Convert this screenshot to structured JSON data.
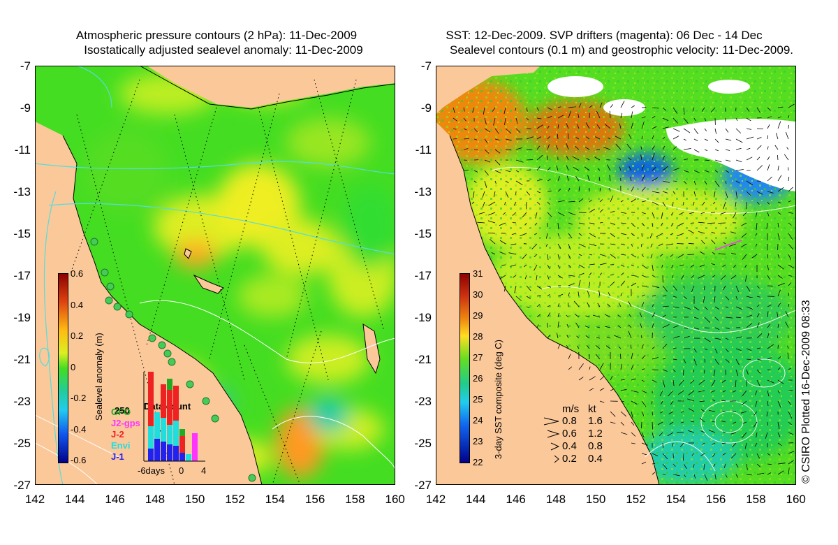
{
  "left_panel": {
    "title_line1": "Atmospheric pressure contours (2 hPa): 11-Dec-2009",
    "title_line2": "Isostatically adjusted sealevel anomaly: 11-Dec-2009",
    "y_ticks": [
      "-7",
      "-9",
      "-11",
      "-13",
      "-15",
      "-17",
      "-19",
      "-21",
      "-23",
      "-25",
      "-27"
    ],
    "x_ticks": [
      "142",
      "144",
      "146",
      "148",
      "150",
      "152",
      "154",
      "156",
      "158",
      "160"
    ],
    "colorbar": {
      "label": "Sealevel anomaly (m)",
      "ticks": [
        "0.6",
        "0.4",
        "0.2",
        "0",
        "-0.2",
        "-0.4",
        "-0.6"
      ]
    },
    "legend": {
      "title": "Data count",
      "count_label": "250",
      "missions": [
        {
          "name": "GFO",
          "color": "#22aa22"
        },
        {
          "name": "J2-gps",
          "color": "#ff33ff"
        },
        {
          "name": "J-2",
          "color": "#ee2222"
        },
        {
          "name": "Envi",
          "color": "#22dddd"
        },
        {
          "name": "J-1",
          "color": "#2222ee"
        }
      ],
      "x_labels": [
        "-6days",
        "0",
        "4"
      ]
    }
  },
  "right_panel": {
    "title_line1": "SST: 12-Dec-2009. SVP drifters (magenta): 06 Dec - 14 Dec",
    "title_line2": "Sealevel contours (0.1 m) and geostrophic velocity: 11-Dec-2009.",
    "y_ticks": [
      "-7",
      "-9",
      "-11",
      "-13",
      "-15",
      "-17",
      "-19",
      "-21",
      "-23",
      "-25",
      "-27"
    ],
    "x_ticks": [
      "142",
      "144",
      "146",
      "148",
      "150",
      "152",
      "154",
      "156",
      "158",
      "160"
    ],
    "colorbar": {
      "label": "3-day SST composite (deg C)",
      "ticks": [
        "31",
        "30",
        "29",
        "28",
        "27",
        "26",
        "25",
        "24",
        "23",
        "22"
      ]
    },
    "vector_legend": {
      "header_ms": "m/s",
      "header_kt": "kt",
      "rows": [
        {
          "ms": "0.8",
          "kt": "1.6"
        },
        {
          "ms": "0.6",
          "kt": "1.2"
        },
        {
          "ms": "0.4",
          "kt": "0.8"
        },
        {
          "ms": "0.2",
          "kt": "0.4"
        }
      ]
    }
  },
  "credit": "© CSIRO Plotted 16-Dec-2009 08:33",
  "colors": {
    "land": "#fbc89a",
    "ssh_base": "#44dd22",
    "sst_base": "#55dd22",
    "contour_pressure": "#55dddd",
    "contour_ssh": "#ffffff"
  }
}
